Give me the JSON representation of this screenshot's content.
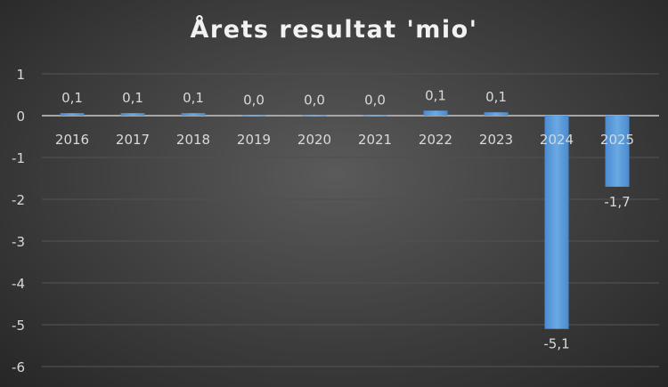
{
  "chart_data": {
    "type": "bar",
    "title": "Årets resultat 'mio'",
    "categories": [
      "2016",
      "2017",
      "2018",
      "2019",
      "2020",
      "2021",
      "2022",
      "2023",
      "2024",
      "2025"
    ],
    "values": [
      0.06,
      0.06,
      0.06,
      0.01,
      0.01,
      0.01,
      0.12,
      0.08,
      -5.1,
      -1.7
    ],
    "data_labels": [
      "0,1",
      "0,1",
      "0,1",
      "0,0",
      "0,0",
      "0,0",
      "0,1",
      "0,1",
      "-5,1",
      "-1,7"
    ],
    "yticks": [
      "1",
      "0",
      "-1",
      "-2",
      "-3",
      "-4",
      "-5",
      "-6"
    ],
    "ylim": [
      -6,
      1
    ],
    "grid": true,
    "colors": {
      "bar": "#5b9bd5"
    }
  }
}
